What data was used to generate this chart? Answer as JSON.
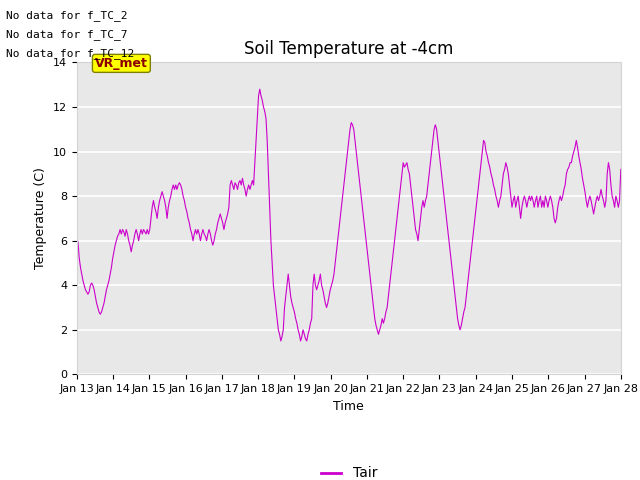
{
  "title": "Soil Temperature at -4cm",
  "xlabel": "Time",
  "ylabel": "Temperature (C)",
  "ylim": [
    0,
    14
  ],
  "yticks": [
    0,
    2,
    4,
    6,
    8,
    10,
    12,
    14
  ],
  "xtick_labels": [
    "Jan 13",
    "Jan 14",
    "Jan 15",
    "Jan 16",
    "Jan 17",
    "Jan 18",
    "Jan 19",
    "Jan 20",
    "Jan 21",
    "Jan 22",
    "Jan 23",
    "Jan 24",
    "Jan 25",
    "Jan 26",
    "Jan 27",
    "Jan 28"
  ],
  "line_color": "#cc00cc",
  "line_label": "Tair",
  "bg_color": "#e8e8e8",
  "grid_color": "white",
  "annotations": [
    "No data for f_TC_2",
    "No data for f_TC_7",
    "No data for f_TC_12"
  ],
  "vr_met_label": "VR_met",
  "title_fontsize": 12,
  "label_fontsize": 9,
  "tick_fontsize": 8,
  "y_data": [
    6.2,
    5.9,
    5.2,
    4.8,
    4.5,
    4.2,
    4.0,
    3.8,
    3.7,
    3.6,
    3.7,
    4.0,
    4.1,
    4.0,
    3.8,
    3.5,
    3.2,
    3.0,
    2.8,
    2.7,
    2.8,
    3.0,
    3.2,
    3.5,
    3.8,
    4.0,
    4.2,
    4.5,
    4.8,
    5.2,
    5.5,
    5.8,
    6.0,
    6.2,
    6.3,
    6.5,
    6.3,
    6.5,
    6.4,
    6.2,
    6.5,
    6.3,
    6.0,
    5.8,
    5.5,
    5.8,
    6.0,
    6.3,
    6.5,
    6.3,
    6.0,
    6.3,
    6.5,
    6.3,
    6.5,
    6.4,
    6.3,
    6.5,
    6.3,
    6.5,
    7.0,
    7.5,
    7.8,
    7.5,
    7.3,
    7.0,
    7.5,
    7.8,
    8.0,
    8.2,
    8.0,
    7.8,
    7.5,
    7.0,
    7.5,
    7.8,
    8.0,
    8.3,
    8.5,
    8.3,
    8.5,
    8.3,
    8.5,
    8.6,
    8.5,
    8.3,
    8.0,
    7.8,
    7.5,
    7.3,
    7.0,
    6.8,
    6.5,
    6.3,
    6.0,
    6.3,
    6.5,
    6.3,
    6.5,
    6.3,
    6.0,
    6.3,
    6.5,
    6.3,
    6.2,
    6.0,
    6.3,
    6.5,
    6.3,
    6.0,
    5.8,
    6.0,
    6.3,
    6.5,
    6.8,
    7.0,
    7.2,
    7.0,
    6.8,
    6.5,
    6.8,
    7.0,
    7.2,
    7.5,
    8.5,
    8.7,
    8.5,
    8.3,
    8.6,
    8.5,
    8.3,
    8.6,
    8.7,
    8.5,
    8.8,
    8.5,
    8.3,
    8.0,
    8.3,
    8.5,
    8.3,
    8.5,
    8.7,
    8.5,
    9.5,
    10.5,
    11.5,
    12.5,
    12.8,
    12.5,
    12.3,
    12.0,
    11.8,
    11.5,
    10.5,
    9.0,
    7.5,
    6.0,
    5.0,
    4.0,
    3.5,
    3.0,
    2.5,
    2.0,
    1.8,
    1.5,
    1.7,
    2.0,
    3.0,
    3.5,
    4.0,
    4.5,
    4.0,
    3.5,
    3.2,
    3.0,
    2.8,
    2.5,
    2.3,
    2.0,
    1.8,
    1.5,
    1.7,
    2.0,
    1.8,
    1.6,
    1.5,
    1.8,
    2.0,
    2.3,
    2.5,
    4.0,
    4.5,
    4.0,
    3.8,
    4.0,
    4.2,
    4.5,
    4.0,
    3.8,
    3.5,
    3.2,
    3.0,
    3.2,
    3.5,
    3.8,
    4.0,
    4.2,
    4.5,
    5.0,
    5.5,
    6.0,
    6.5,
    7.0,
    7.5,
    8.0,
    8.5,
    9.0,
    9.5,
    10.0,
    10.5,
    11.0,
    11.3,
    11.2,
    11.0,
    10.5,
    10.0,
    9.5,
    9.0,
    8.5,
    8.0,
    7.5,
    7.0,
    6.5,
    6.0,
    5.5,
    5.0,
    4.5,
    4.0,
    3.5,
    3.0,
    2.5,
    2.2,
    2.0,
    1.8,
    2.0,
    2.2,
    2.5,
    2.3,
    2.5,
    2.8,
    3.0,
    3.5,
    4.0,
    4.5,
    5.0,
    5.5,
    6.0,
    6.5,
    7.0,
    7.5,
    8.0,
    8.5,
    9.0,
    9.5,
    9.3,
    9.4,
    9.5,
    9.2,
    9.0,
    8.5,
    8.0,
    7.5,
    7.0,
    6.5,
    6.3,
    6.0,
    6.5,
    7.0,
    7.5,
    7.8,
    7.5,
    7.8,
    8.0,
    8.5,
    9.0,
    9.5,
    10.0,
    10.5,
    11.0,
    11.2,
    11.0,
    10.5,
    10.0,
    9.5,
    9.0,
    8.5,
    8.0,
    7.5,
    7.0,
    6.5,
    6.0,
    5.5,
    5.0,
    4.5,
    4.0,
    3.5,
    3.0,
    2.5,
    2.2,
    2.0,
    2.2,
    2.5,
    2.8,
    3.0,
    3.5,
    4.0,
    4.5,
    5.0,
    5.5,
    6.0,
    6.5,
    7.0,
    7.5,
    8.0,
    8.5,
    9.0,
    9.5,
    10.0,
    10.5,
    10.4,
    10.0,
    9.8,
    9.5,
    9.3,
    9.0,
    8.8,
    8.5,
    8.3,
    8.0,
    7.8,
    7.5,
    7.8,
    8.0,
    8.5,
    9.0,
    9.2,
    9.5,
    9.3,
    9.0,
    8.5,
    8.0,
    7.5,
    7.8,
    8.0,
    7.5,
    7.8,
    8.0,
    7.5,
    7.0,
    7.5,
    7.8,
    8.0,
    7.8,
    7.5,
    7.8,
    8.0,
    7.8,
    8.0,
    7.8,
    7.5,
    7.8,
    8.0,
    7.5,
    7.8,
    8.0,
    7.5,
    7.8,
    7.5,
    8.0,
    7.8,
    7.5,
    7.8,
    8.0,
    7.8,
    7.5,
    7.0,
    6.8,
    7.0,
    7.5,
    7.8,
    8.0,
    7.8,
    8.0,
    8.3,
    8.5,
    9.0,
    9.2,
    9.3,
    9.5,
    9.5,
    9.8,
    10.0,
    10.2,
    10.5,
    10.2,
    9.8,
    9.5,
    9.2,
    8.8,
    8.5,
    8.2,
    7.8,
    7.5,
    7.8,
    8.0,
    7.8,
    7.5,
    7.2,
    7.5,
    7.8,
    8.0,
    7.8,
    8.0,
    8.3,
    8.0,
    7.8,
    7.5,
    7.8,
    9.0,
    9.5,
    9.2,
    8.5,
    8.0,
    7.8,
    7.5,
    8.0,
    7.8,
    7.5,
    7.8,
    9.2
  ]
}
